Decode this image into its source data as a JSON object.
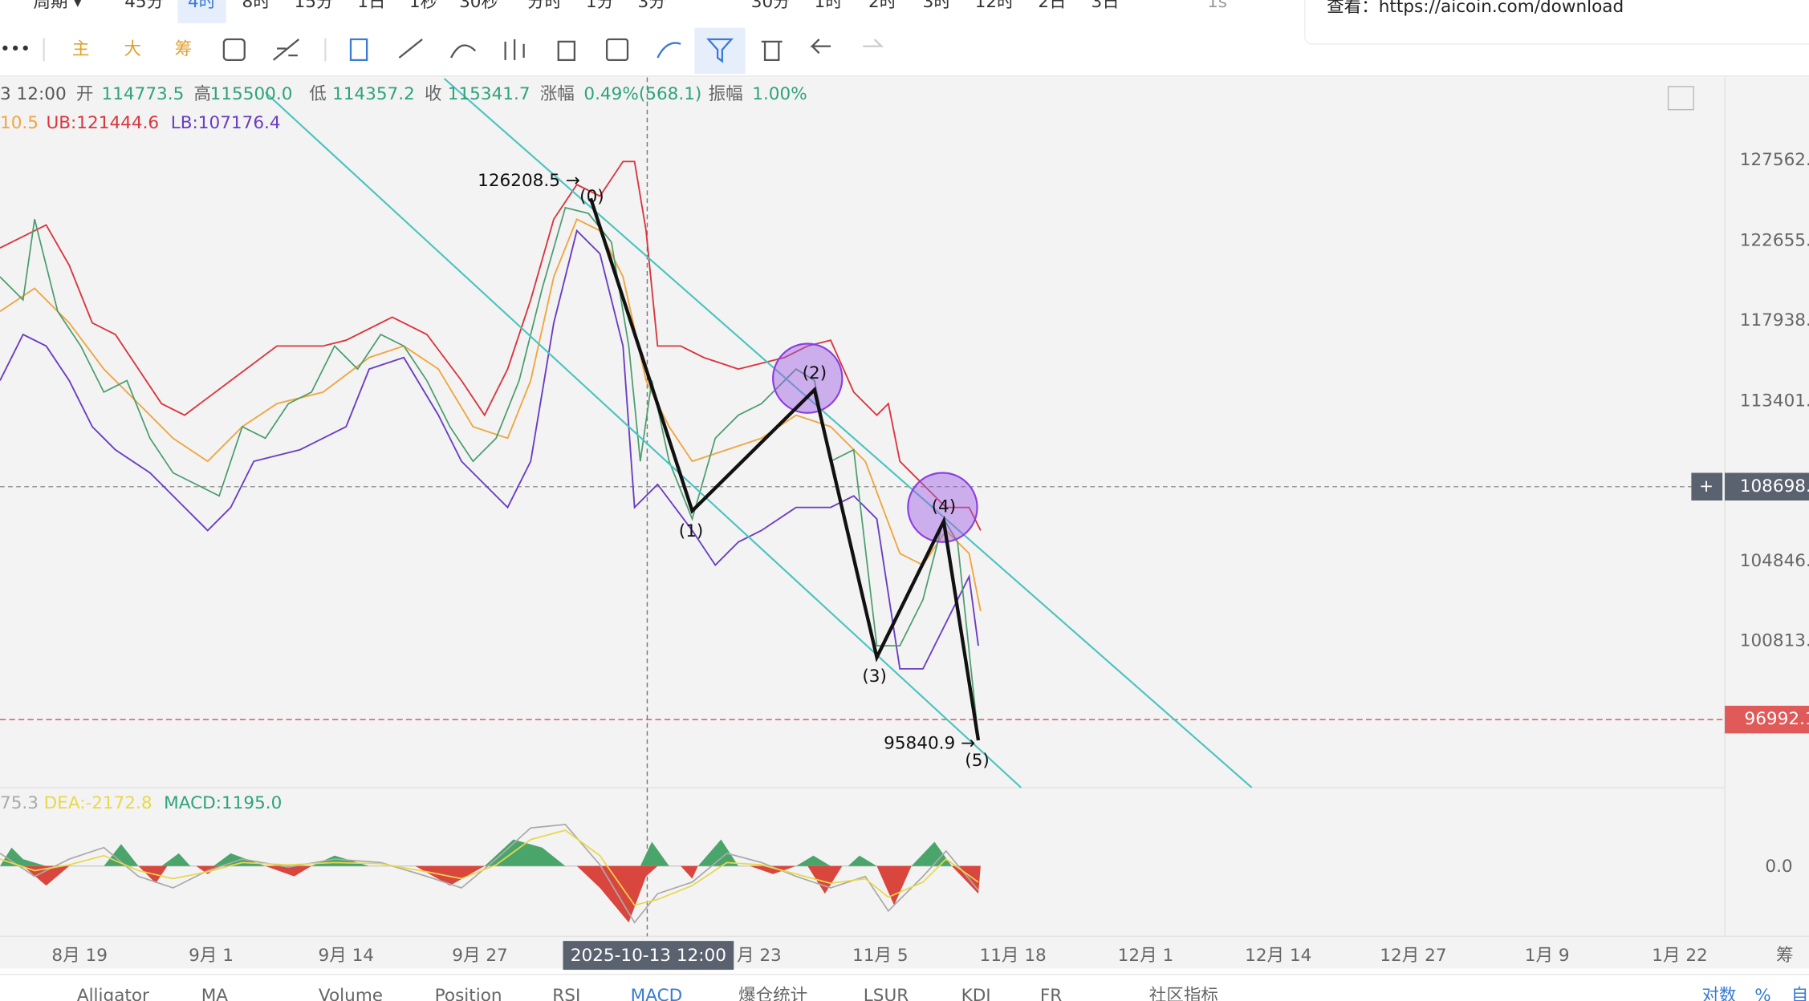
{
  "toolbar": {
    "timeframes": [
      "周期 ▾",
      "45分",
      "4时",
      "8时",
      "15分",
      "1日",
      "1秒",
      "30秒",
      "分时",
      "1分",
      "3分",
      "30分",
      "1时",
      "2时",
      "3时",
      "12时",
      "2日",
      "3日"
    ],
    "indicator_buttons": [
      "主",
      "大",
      "筹"
    ],
    "more": "•••",
    "speed": "1s"
  },
  "notice": "查看：https://aicoin.com/download",
  "ohlc_bar": {
    "time": "3 12:00",
    "fields": [
      {
        "label": "开",
        "value": "114773.5"
      },
      {
        "label": "高",
        "value": "115500.0"
      },
      {
        "label": "低",
        "value": "114357.2"
      },
      {
        "label": "收",
        "value": "115341.7"
      },
      {
        "label": "涨幅",
        "value": "0.49%(568.1)"
      },
      {
        "label": "振幅",
        "value": "1.00%"
      }
    ]
  },
  "bands": {
    "middle": "10.5",
    "upper": "UB:121444.6",
    "lower": "LB:107176.4"
  },
  "price_axis": [
    "127562.",
    "122655.",
    "117938.",
    "113401.",
    "104846.",
    "100813."
  ],
  "crosshair_price": "108698.",
  "last_price": "96992.1",
  "waves": [
    "(0)",
    "(1)",
    "(2)",
    "(3)",
    "(4)",
    "(5)"
  ],
  "annotations": {
    "high": "126208.5 →",
    "low": "95840.9 →"
  },
  "macd": {
    "dif": "75.3",
    "dea": "DEA:-2172.8",
    "macd": "MACD:1195.0",
    "zero": "0.0"
  },
  "date_axis": [
    "8月 19",
    "9月 1",
    "9月 14",
    "9月 27",
    "月 23",
    "11月 5",
    "11月 18",
    "12月 1",
    "12月 14",
    "12月 27",
    "1月 9",
    "1月 22",
    "筹"
  ],
  "crosshair_date": "2025-10-13 12:00",
  "bottom_tabs": [
    "Alligator",
    "MA",
    "Volume",
    "Position",
    "RSI",
    "MACD",
    "爆仓统计",
    "LSUR",
    "KDJ",
    "FR",
    "社区指标",
    "对数",
    "%",
    "自"
  ]
}
